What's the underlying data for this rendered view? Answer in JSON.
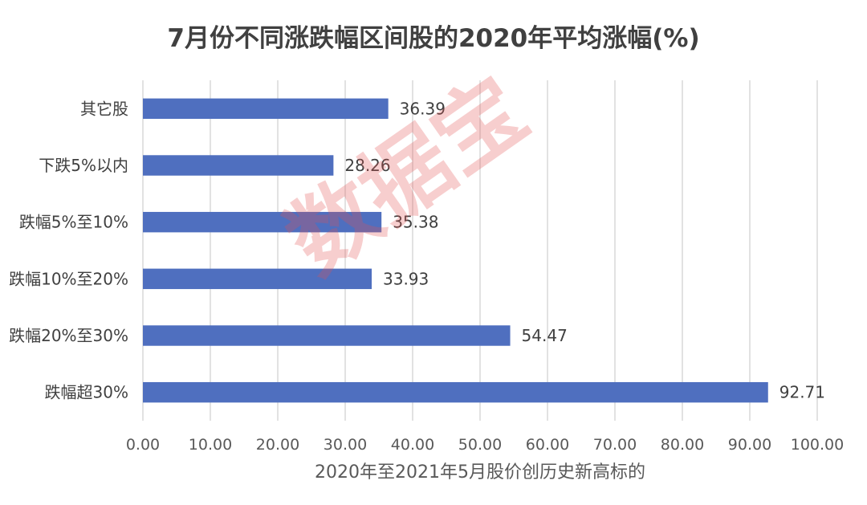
{
  "chart_data": {
    "type": "bar",
    "orientation": "horizontal",
    "title": "7月份不同涨跌幅区间股的2020年平均涨幅(%)",
    "xlabel": "2020年至2021年5月股价创历史新高标的",
    "ylabel": "",
    "categories": [
      "其它股",
      "下跌5%以内",
      "跌幅5%至10%",
      "跌幅10%至20%",
      "跌幅20%至30%",
      "跌幅超30%"
    ],
    "values": [
      36.39,
      28.26,
      35.38,
      33.93,
      54.47,
      92.71
    ],
    "data_labels": [
      "36.39",
      "28.26",
      "35.38",
      "33.93",
      "54.47",
      "92.71"
    ],
    "xlim": [
      0,
      100
    ],
    "xticks": [
      0,
      10,
      20,
      30,
      40,
      50,
      60,
      70,
      80,
      90,
      100
    ],
    "xtick_labels": [
      "0.00",
      "10.00",
      "20.00",
      "30.00",
      "40.00",
      "50.00",
      "60.00",
      "70.00",
      "80.00",
      "90.00",
      "100.00"
    ],
    "grid": "vertical",
    "bar_color": "#4f6fbf",
    "grid_color": "#d9d9d9"
  },
  "watermark": "数据宝"
}
